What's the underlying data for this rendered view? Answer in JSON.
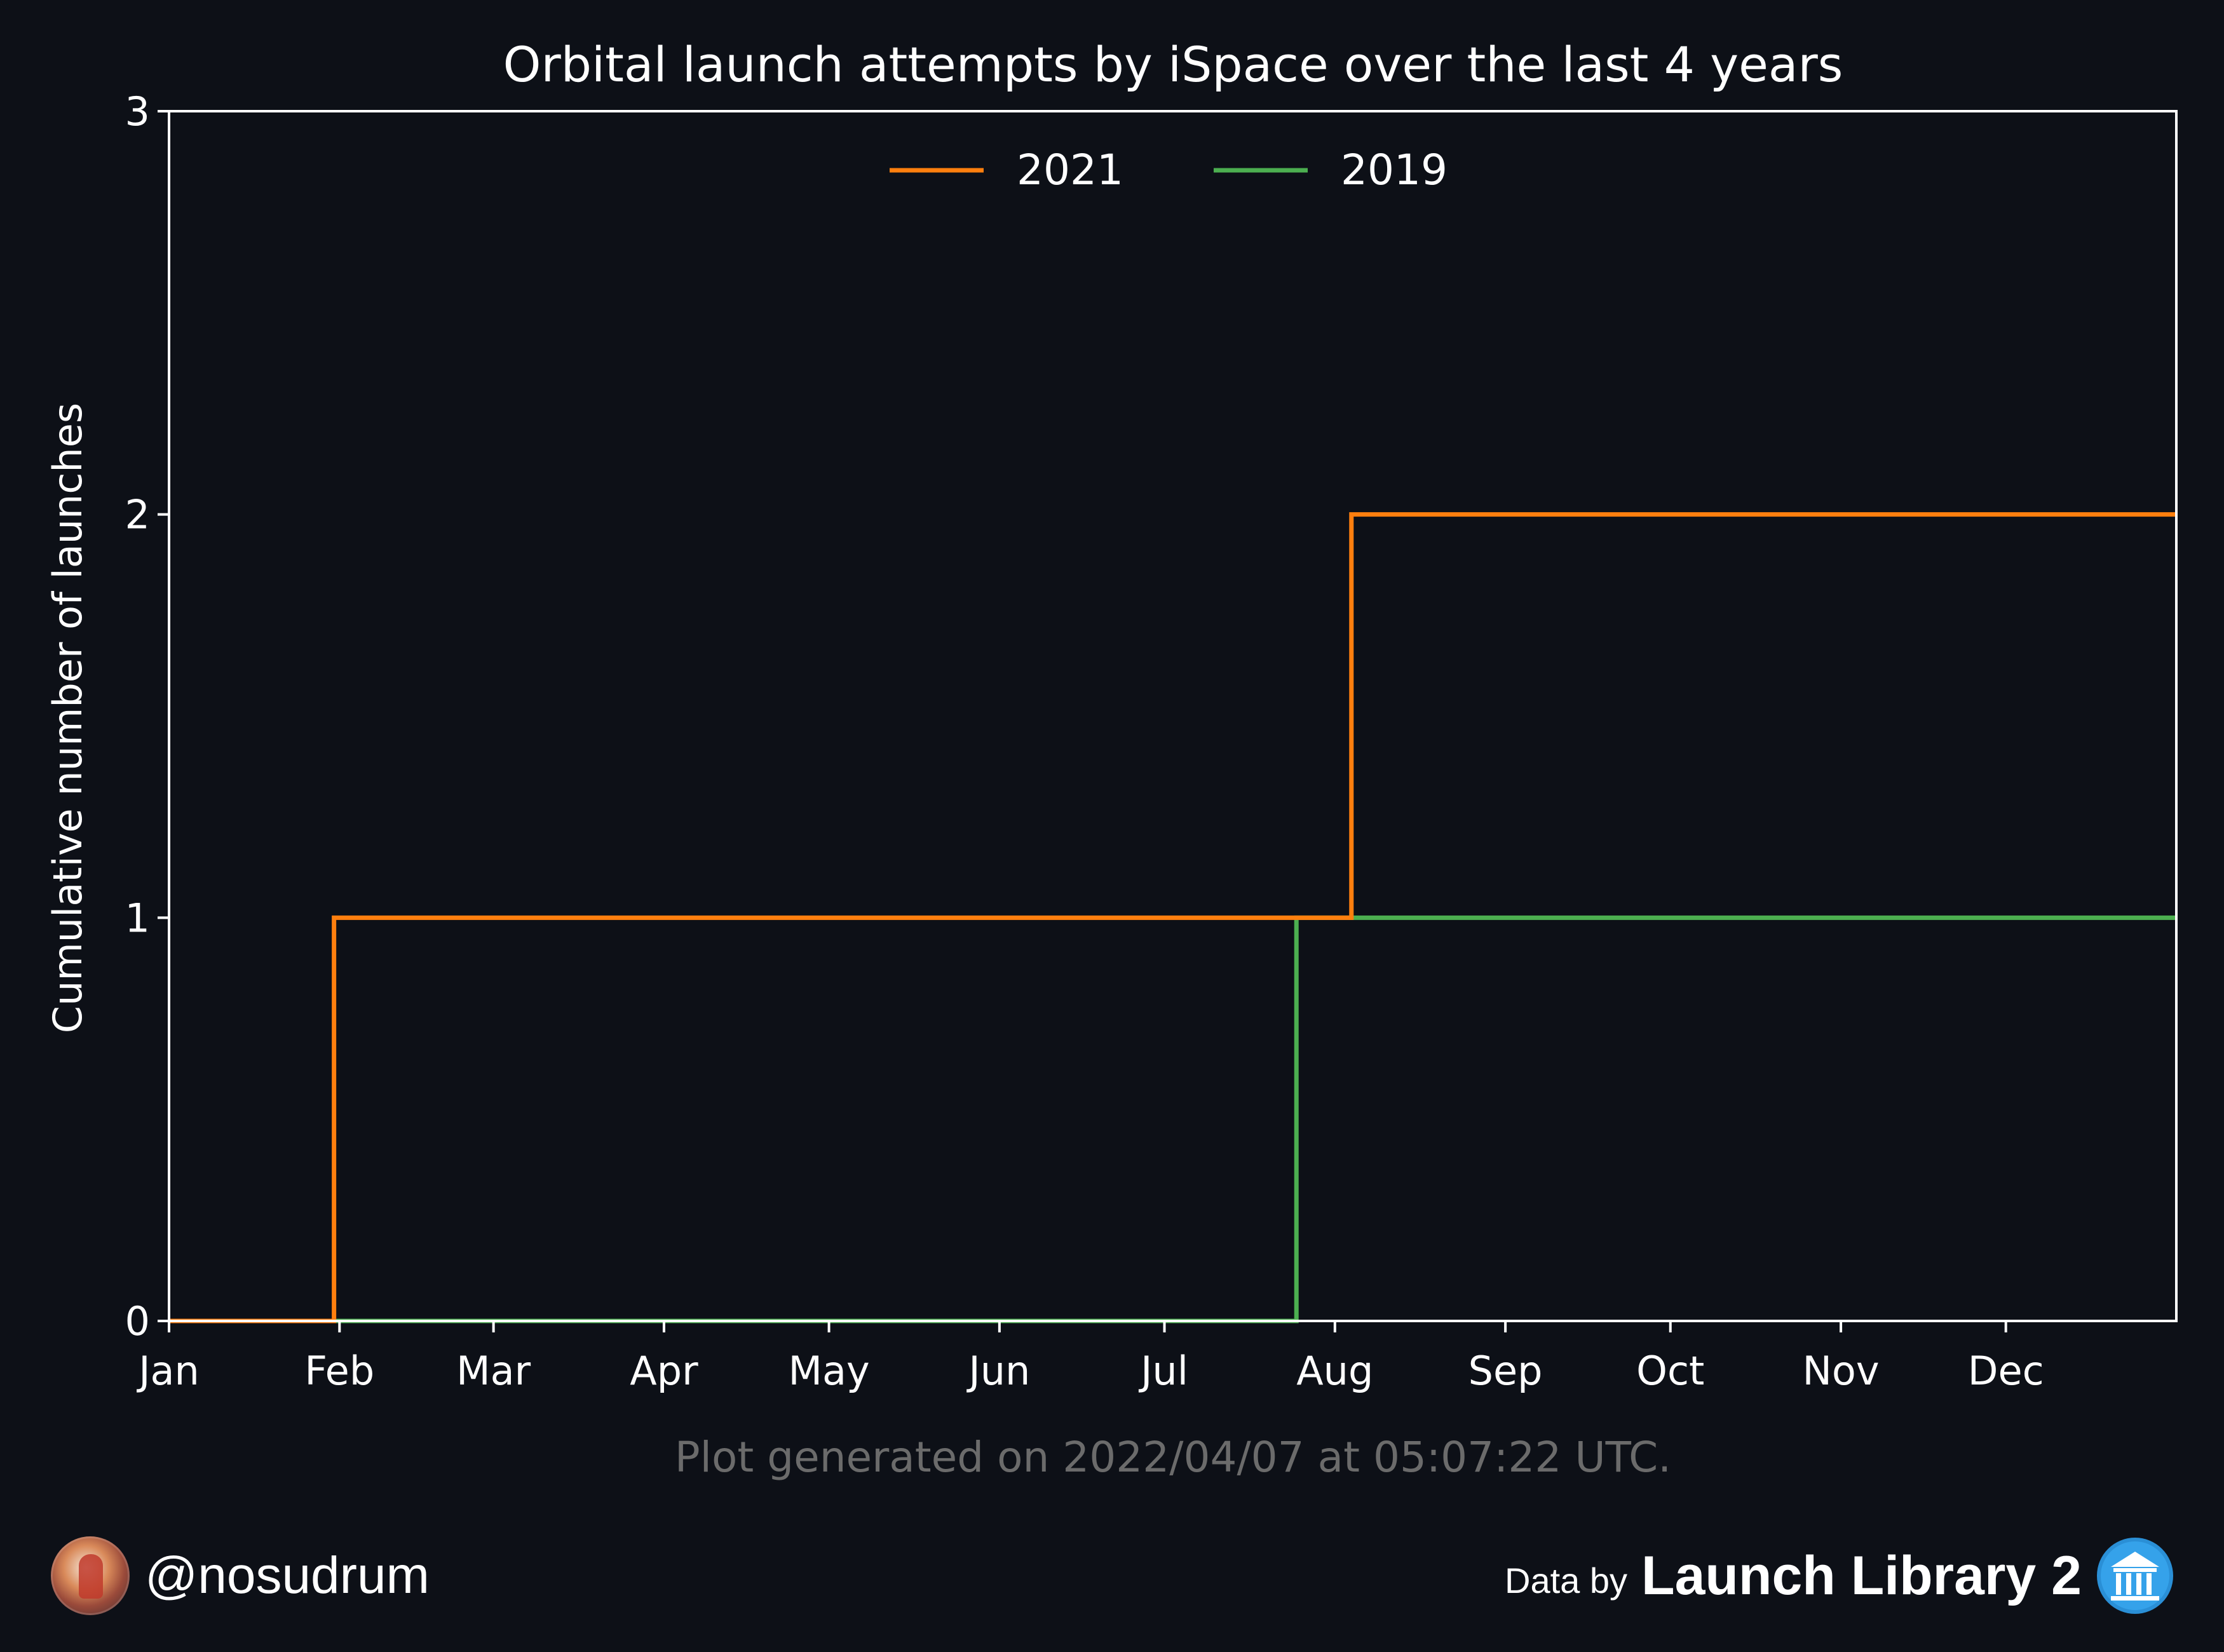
{
  "chart_data": {
    "type": "line",
    "step": true,
    "title": "Orbital launch attempts by iSpace over the last 4 years",
    "xlabel": "",
    "ylabel": "Cumulative number of launches",
    "x_unit": "day of year",
    "xlim": [
      1,
      366
    ],
    "ylim": [
      0,
      3
    ],
    "yticks": [
      0,
      1,
      2,
      3
    ],
    "xtick_labels": [
      "Jan",
      "Feb",
      "Mar",
      "Apr",
      "May",
      "Jun",
      "Jul",
      "Aug",
      "Sep",
      "Oct",
      "Nov",
      "Dec"
    ],
    "xtick_days": [
      1,
      32,
      60,
      91,
      121,
      152,
      182,
      213,
      244,
      274,
      305,
      335
    ],
    "legend_position": "top-center",
    "grid": false,
    "series": [
      {
        "name": "2021",
        "color": "#ff7f0e",
        "points": [
          {
            "x": 1,
            "y": 0
          },
          {
            "x": 31,
            "y": 1
          },
          {
            "x": 216,
            "y": 2
          },
          {
            "x": 366,
            "y": 2
          }
        ]
      },
      {
        "name": "2019",
        "color": "#4caf50",
        "points": [
          {
            "x": 1,
            "y": 0
          },
          {
            "x": 206,
            "y": 1
          },
          {
            "x": 366,
            "y": 1
          }
        ]
      }
    ],
    "footnote": "Plot generated on 2022/04/07 at 05:07:22 UTC."
  },
  "footer": {
    "handle": "@nosudrum",
    "data_by": "Data by",
    "source": "Launch Library 2",
    "avatar_icon": "avatar-icon",
    "source_icon": "bank-icon"
  },
  "colors": {
    "background": "#0d1017",
    "axis": "#ffffff",
    "footnote": "#6b6b6b"
  }
}
